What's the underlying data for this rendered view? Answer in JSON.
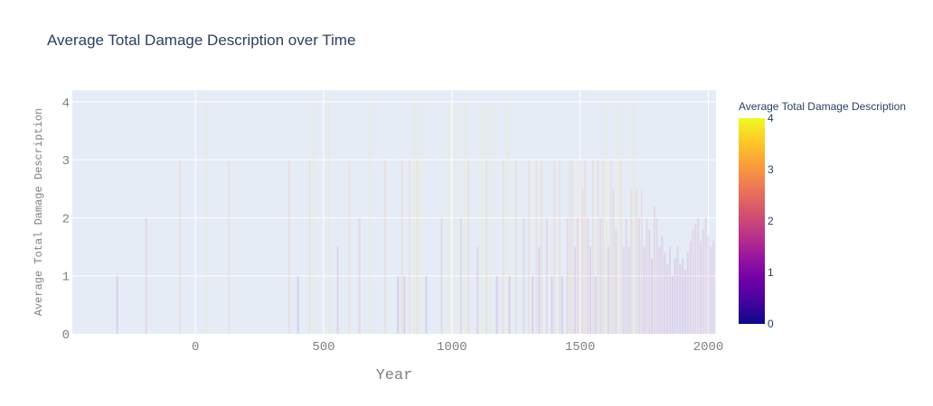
{
  "chart_data": {
    "type": "bar",
    "title": "Average Total Damage Description over Time",
    "xlabel": "Year",
    "ylabel": "Average Total Damage Description",
    "xlim": [
      -480,
      2030
    ],
    "ylim": [
      0,
      4.2
    ],
    "x_ticks": [
      0,
      500,
      1000,
      1500,
      2000
    ],
    "y_ticks": [
      0,
      1,
      2,
      3,
      4
    ],
    "grid": true,
    "colorbar": {
      "title": "Average Total Damage Description",
      "range": [
        0,
        4
      ],
      "ticks": [
        0,
        1,
        2,
        3,
        4
      ],
      "colorscale": [
        "#0d0887",
        "#46039f",
        "#7201a8",
        "#9c179e",
        "#bd3786",
        "#d8576b",
        "#ed7953",
        "#fb9f3a",
        "#fdca26",
        "#f0f921"
      ]
    },
    "bar_opacity": 0.12,
    "x": [
      -305,
      -192,
      -60,
      48,
      130,
      365,
      400,
      445,
      462,
      520,
      555,
      600,
      640,
      680,
      740,
      790,
      805,
      815,
      835,
      855,
      865,
      880,
      900,
      960,
      985,
      1010,
      1035,
      1050,
      1065,
      1100,
      1120,
      1135,
      1150,
      1175,
      1200,
      1215,
      1225,
      1250,
      1280,
      1300,
      1315,
      1330,
      1340,
      1350,
      1370,
      1390,
      1400,
      1420,
      1430,
      1450,
      1460,
      1470,
      1480,
      1490,
      1500,
      1510,
      1520,
      1530,
      1540,
      1550,
      1560,
      1570,
      1580,
      1590,
      1600,
      1610,
      1620,
      1630,
      1640,
      1650,
      1660,
      1670,
      1680,
      1690,
      1700,
      1710,
      1720,
      1730,
      1740,
      1750,
      1760,
      1770,
      1780,
      1790,
      1800,
      1810,
      1820,
      1830,
      1840,
      1850,
      1860,
      1870,
      1880,
      1890,
      1900,
      1910,
      1920,
      1930,
      1940,
      1950,
      1960,
      1970,
      1980,
      1990,
      2000,
      2010,
      2020
    ],
    "values": [
      1,
      2,
      3,
      4,
      3,
      3,
      1,
      3,
      4,
      4,
      1.5,
      3,
      2,
      4,
      3,
      1,
      3,
      1,
      3,
      4,
      3,
      4,
      1,
      2,
      4,
      4,
      2,
      4,
      3,
      1.5,
      4,
      3,
      4,
      1,
      3,
      4,
      1,
      3,
      2,
      3,
      1,
      3,
      1.5,
      3,
      2,
      1,
      3,
      3,
      1,
      2,
      3,
      3,
      1.5,
      2,
      3,
      2.5,
      3,
      2,
      1.5,
      3,
      1,
      3,
      2,
      3,
      4,
      1.5,
      3,
      2.5,
      1.8,
      4,
      3,
      1.5,
      2,
      1.5,
      2.5,
      4,
      2.5,
      2,
      2.5,
      1.5,
      2,
      1.8,
      1.3,
      2.2,
      2,
      1.5,
      1.7,
      1.4,
      1.2,
      1.5,
      1,
      1.3,
      1.5,
      1.2,
      1.3,
      1.1,
      1.4,
      1.6,
      1.8,
      1.9,
      2,
      1.6,
      1.8,
      2,
      1.7,
      1.5,
      1.6
    ]
  }
}
